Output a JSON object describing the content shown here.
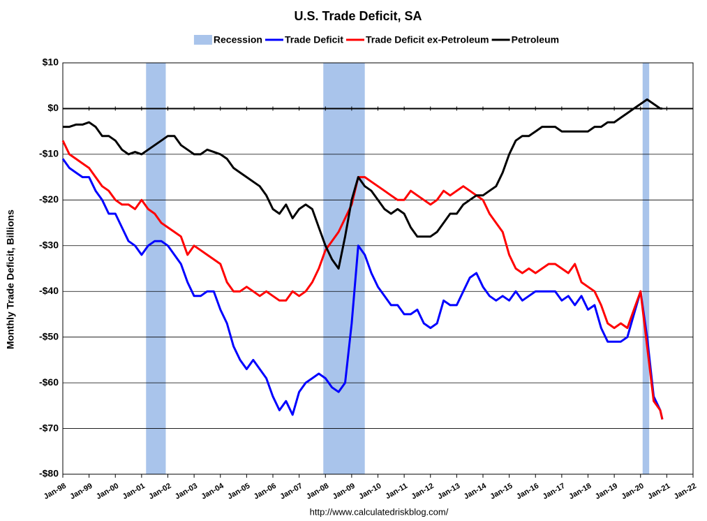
{
  "chart_data": {
    "type": "line",
    "title": "U.S. Trade Deficit, SA",
    "y_label": "Monthly Trade Deficit, Billions",
    "source": "http://www.calculatedriskblog.com/",
    "recession": {
      "name": "Recession",
      "color": "#a9c4eb",
      "ranges": [
        [
          2001.17,
          2001.92
        ],
        [
          2007.92,
          2009.5
        ],
        [
          2020.08,
          2020.33
        ]
      ]
    },
    "x": [
      1998,
      1998.25,
      1998.5,
      1998.75,
      1999,
      1999.25,
      1999.5,
      1999.75,
      2000,
      2000.25,
      2000.5,
      2000.75,
      2001,
      2001.25,
      2001.5,
      2001.75,
      2002,
      2002.25,
      2002.5,
      2002.75,
      2003,
      2003.25,
      2003.5,
      2003.75,
      2004,
      2004.25,
      2004.5,
      2004.75,
      2005,
      2005.25,
      2005.5,
      2005.75,
      2006,
      2006.25,
      2006.5,
      2006.75,
      2007,
      2007.25,
      2007.5,
      2007.75,
      2008,
      2008.25,
      2008.5,
      2008.75,
      2009,
      2009.25,
      2009.5,
      2009.75,
      2010,
      2010.25,
      2010.5,
      2010.75,
      2011,
      2011.25,
      2011.5,
      2011.75,
      2012,
      2012.25,
      2012.5,
      2012.75,
      2013,
      2013.25,
      2013.5,
      2013.75,
      2014,
      2014.25,
      2014.5,
      2014.75,
      2015,
      2015.25,
      2015.5,
      2015.75,
      2016,
      2016.25,
      2016.5,
      2016.75,
      2017,
      2017.25,
      2017.5,
      2017.75,
      2018,
      2018.25,
      2018.5,
      2018.75,
      2019,
      2019.25,
      2019.5,
      2019.75,
      2020,
      2020.25,
      2020.5,
      2020.75,
      2020.83
    ],
    "series": [
      {
        "name": "Trade Deficit",
        "color": "#0000ff",
        "values": [
          -11,
          -13,
          -14,
          -15,
          -15,
          -18,
          -20,
          -23,
          -23,
          -26,
          -29,
          -30,
          -32,
          -30,
          -29,
          -29,
          -30,
          -32,
          -34,
          -38,
          -41,
          -41,
          -40,
          -40,
          -44,
          -47,
          -52,
          -55,
          -57,
          -55,
          -57,
          -59,
          -63,
          -66,
          -64,
          -67,
          -62,
          -60,
          -59,
          -58,
          -59,
          -61,
          -62,
          -60,
          -47,
          -30,
          -32,
          -36,
          -39,
          -41,
          -43,
          -43,
          -45,
          -45,
          -44,
          -47,
          -48,
          -47,
          -42,
          -43,
          -43,
          -40,
          -37,
          -36,
          -39,
          -41,
          -42,
          -41,
          -42,
          -40,
          -42,
          -41,
          -40,
          -40,
          -40,
          -40,
          -42,
          -41,
          -43,
          -41,
          -44,
          -43,
          -48,
          -51,
          -51,
          -51,
          -50,
          -45,
          -40,
          -50,
          -63,
          -66,
          -68
        ]
      },
      {
        "name": "Trade Deficit ex-Petroleum",
        "color": "#ff0000",
        "values": [
          -7,
          -10,
          -11,
          -12,
          -13,
          -15,
          -17,
          -18,
          -20,
          -21,
          -21,
          -22,
          -20,
          -22,
          -23,
          -25,
          -26,
          -27,
          -28,
          -32,
          -30,
          -31,
          -32,
          -33,
          -34,
          -38,
          -40,
          -40,
          -39,
          -40,
          -41,
          -40,
          -41,
          -42,
          -42,
          -40,
          -41,
          -40,
          -38,
          -35,
          -31,
          -29,
          -27,
          -24,
          -21,
          -15,
          -15,
          -16,
          -17,
          -18,
          -19,
          -20,
          -20,
          -18,
          -19,
          -20,
          -21,
          -20,
          -18,
          -19,
          -18,
          -17,
          -18,
          -19,
          -20,
          -23,
          -25,
          -27,
          -32,
          -35,
          -36,
          -35,
          -36,
          -35,
          -34,
          -34,
          -35,
          -36,
          -34,
          -38,
          -39,
          -40,
          -43,
          -47,
          -48,
          -47,
          -48,
          -44,
          -40,
          -52,
          -64,
          -66,
          -68
        ]
      },
      {
        "name": "Petroleum",
        "color": "#000000",
        "values": [
          -4,
          -4,
          -3.5,
          -3.5,
          -3,
          -4,
          -6,
          -6,
          -7,
          -9,
          -10,
          -9.5,
          -10,
          -9,
          -8,
          -7,
          -6,
          -6,
          -8,
          -9,
          -10,
          -10,
          -9,
          -9.5,
          -10,
          -11,
          -13,
          -14,
          -15,
          -16,
          -17,
          -19,
          -22,
          -23,
          -21,
          -24,
          -22,
          -21,
          -22,
          -26,
          -30,
          -33,
          -35,
          -28,
          -20,
          -15,
          -17,
          -18,
          -20,
          -22,
          -23,
          -22,
          -23,
          -26,
          -28,
          -28,
          -28,
          -27,
          -25,
          -23,
          -23,
          -21,
          -20,
          -19,
          -19,
          -18,
          -17,
          -14,
          -10,
          -7,
          -6,
          -6,
          -5,
          -4,
          -4,
          -4,
          -5,
          -5,
          -5,
          -5,
          -5,
          -4,
          -4,
          -3,
          -3,
          -2,
          -1,
          0,
          1,
          2,
          1,
          0,
          0
        ]
      }
    ],
    "xlim": [
      1998,
      2022
    ],
    "xticks": [
      {
        "value": 1998,
        "label": "Jan-98"
      },
      {
        "value": 1999,
        "label": "Jan-99"
      },
      {
        "value": 2000,
        "label": "Jan-00"
      },
      {
        "value": 2001,
        "label": "Jan-01"
      },
      {
        "value": 2002,
        "label": "Jan-02"
      },
      {
        "value": 2003,
        "label": "Jan-03"
      },
      {
        "value": 2004,
        "label": "Jan-04"
      },
      {
        "value": 2005,
        "label": "Jan-05"
      },
      {
        "value": 2006,
        "label": "Jan-06"
      },
      {
        "value": 2007,
        "label": "Jan-07"
      },
      {
        "value": 2008,
        "label": "Jan-08"
      },
      {
        "value": 2009,
        "label": "Jan-09"
      },
      {
        "value": 2010,
        "label": "Jan-10"
      },
      {
        "value": 2011,
        "label": "Jan-11"
      },
      {
        "value": 2012,
        "label": "Jan-12"
      },
      {
        "value": 2013,
        "label": "Jan-13"
      },
      {
        "value": 2014,
        "label": "Jan-14"
      },
      {
        "value": 2015,
        "label": "Jan-15"
      },
      {
        "value": 2016,
        "label": "Jan-16"
      },
      {
        "value": 2017,
        "label": "Jan-17"
      },
      {
        "value": 2018,
        "label": "Jan-18"
      },
      {
        "value": 2019,
        "label": "Jan-19"
      },
      {
        "value": 2020,
        "label": "Jan-20"
      },
      {
        "value": 2021,
        "label": "Jan-21"
      },
      {
        "value": 2022,
        "label": "Jan-22"
      }
    ],
    "ylim": [
      -80,
      10
    ],
    "yticks": [
      {
        "value": 10,
        "label": "$10"
      },
      {
        "value": 0,
        "label": "$0"
      },
      {
        "value": -10,
        "label": "-$10"
      },
      {
        "value": -20,
        "label": "-$20"
      },
      {
        "value": -30,
        "label": "-$30"
      },
      {
        "value": -40,
        "label": "-$40"
      },
      {
        "value": -50,
        "label": "-$50"
      },
      {
        "value": -60,
        "label": "-$60"
      },
      {
        "value": -70,
        "label": "-$70"
      },
      {
        "value": -80,
        "label": "-$80"
      }
    ],
    "grid": true,
    "legend": "top"
  }
}
